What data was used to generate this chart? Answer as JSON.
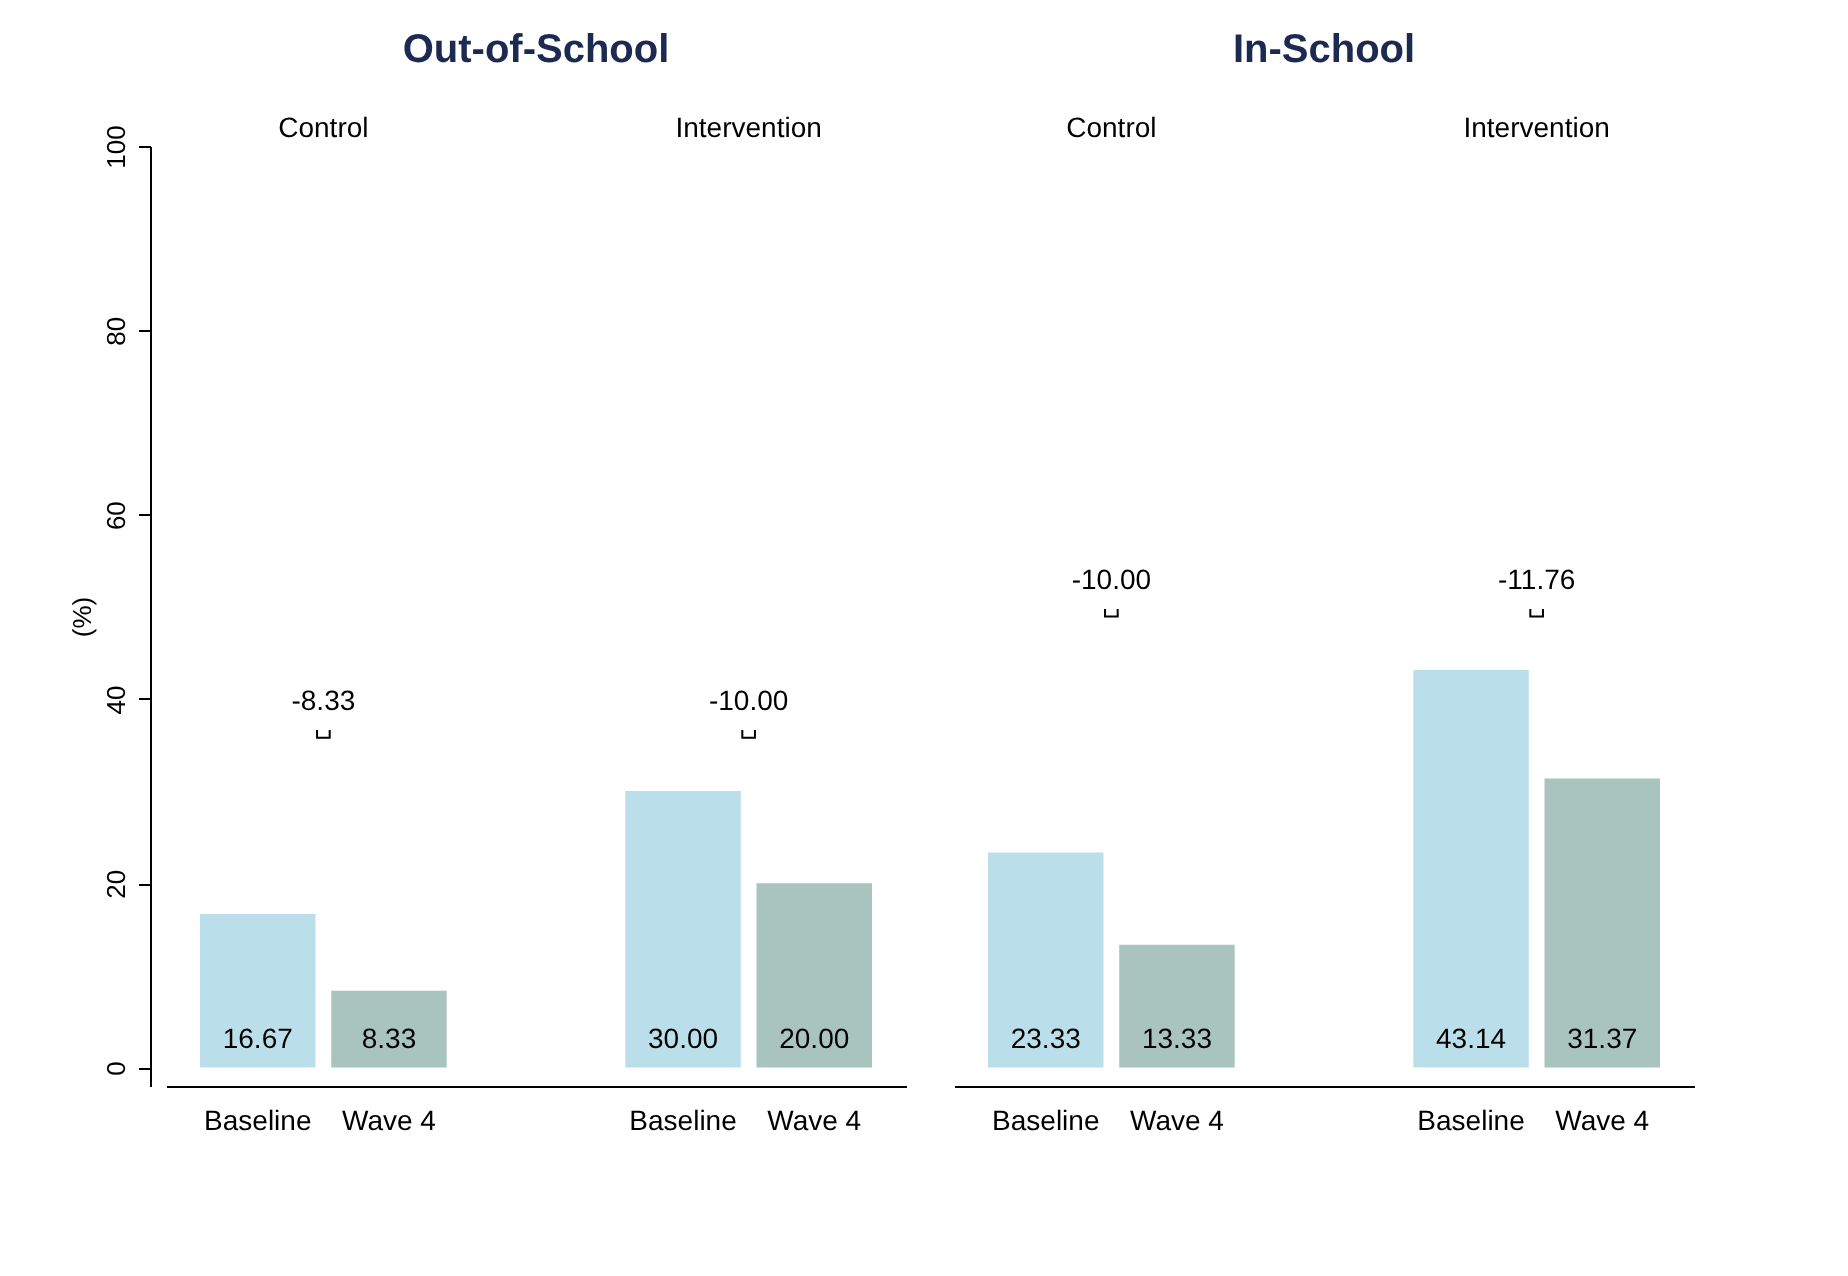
{
  "chart_data": [
    {
      "type": "bar",
      "title": "Out-of-School",
      "ylabel": "(%)",
      "categories": [
        "Control",
        "Intervention"
      ],
      "series": [
        {
          "name": "Baseline",
          "color": "#badfea",
          "values": [
            16.67,
            30.0
          ],
          "value_labels": [
            "16.67",
            "30.00"
          ]
        },
        {
          "name": "Wave 4",
          "color": "#a8c4bd",
          "values": [
            8.33,
            20.0
          ],
          "value_labels": [
            "8.33",
            "20.00"
          ]
        }
      ],
      "ylim": [
        -2,
        100
      ],
      "yticks": [
        0,
        20,
        40,
        60,
        80,
        100
      ],
      "annotations": [
        "-8.33",
        "-10.00"
      ]
    },
    {
      "type": "bar",
      "title": "In-School",
      "categories": [
        "Control",
        "Intervention"
      ],
      "series": [
        {
          "name": "Baseline",
          "color": "#badfea",
          "values": [
            23.33,
            43.14
          ],
          "value_labels": [
            "23.33",
            "43.14"
          ]
        },
        {
          "name": "Wave 4",
          "color": "#a8c4bd",
          "values": [
            13.33,
            31.37
          ],
          "value_labels": [
            "13.33",
            "31.37"
          ]
        }
      ],
      "ylim": [
        -2,
        100
      ],
      "tick_labels": "x",
      "annotations": [
        "-10.00",
        "-11.76"
      ]
    }
  ]
}
